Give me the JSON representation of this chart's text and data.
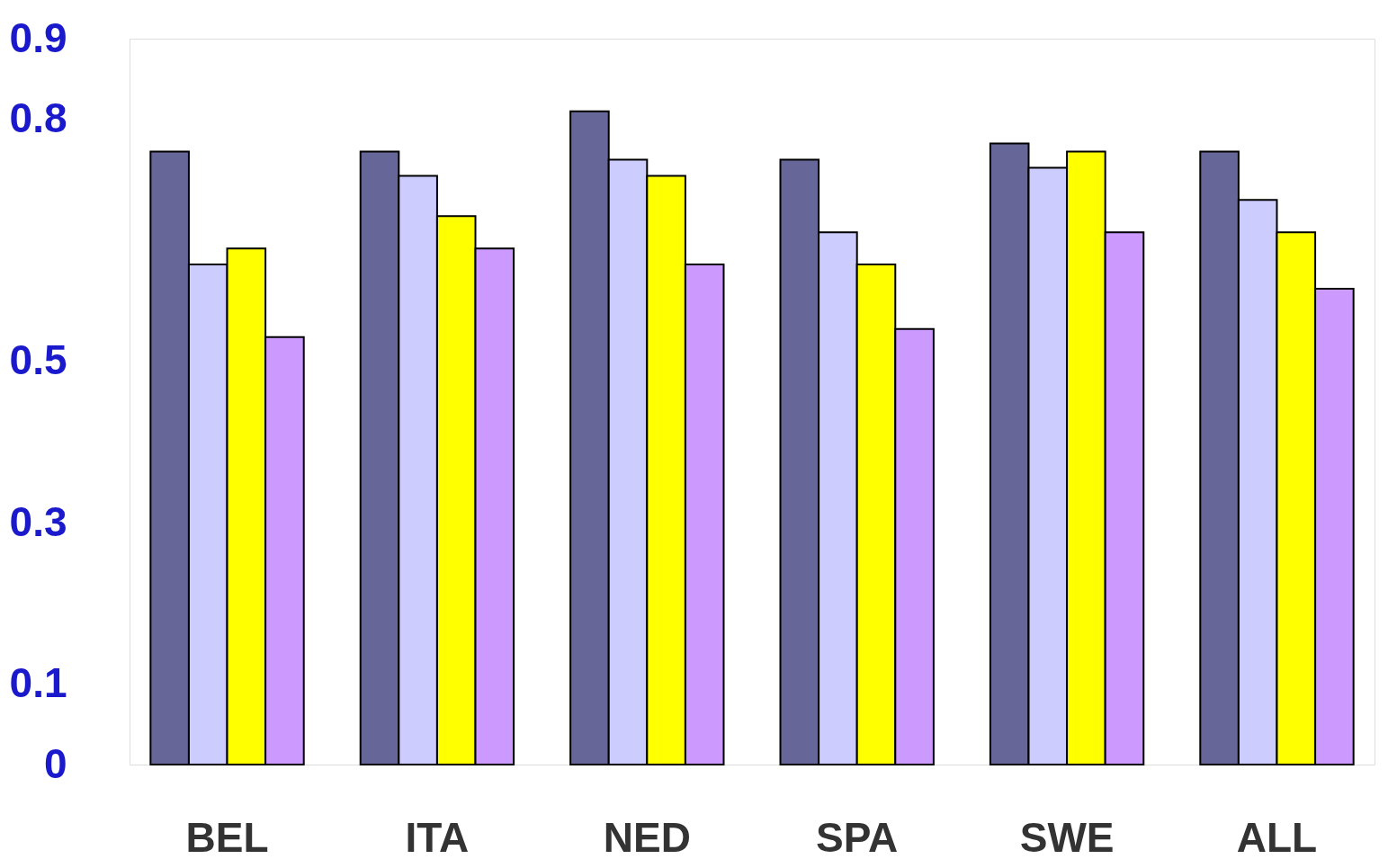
{
  "chart_data": {
    "type": "bar",
    "categories": [
      "BEL",
      "ITA",
      "NED",
      "SPA",
      "SWE",
      "ALL"
    ],
    "series": [
      {
        "color": "#666699",
        "values": [
          0.76,
          0.76,
          0.81,
          0.75,
          0.77,
          0.76
        ]
      },
      {
        "color": "#ccccff",
        "values": [
          0.62,
          0.73,
          0.75,
          0.66,
          0.74,
          0.7
        ]
      },
      {
        "color": "#ffff00",
        "values": [
          0.64,
          0.68,
          0.73,
          0.62,
          0.76,
          0.66
        ]
      },
      {
        "color": "#cc99ff",
        "values": [
          0.53,
          0.64,
          0.62,
          0.54,
          0.66,
          0.59
        ]
      }
    ],
    "ylim": [
      0,
      0.9
    ],
    "yticks": [
      0,
      0.1,
      0.3,
      0.5,
      0.8,
      0.9
    ],
    "grid": false,
    "legend": false
  }
}
